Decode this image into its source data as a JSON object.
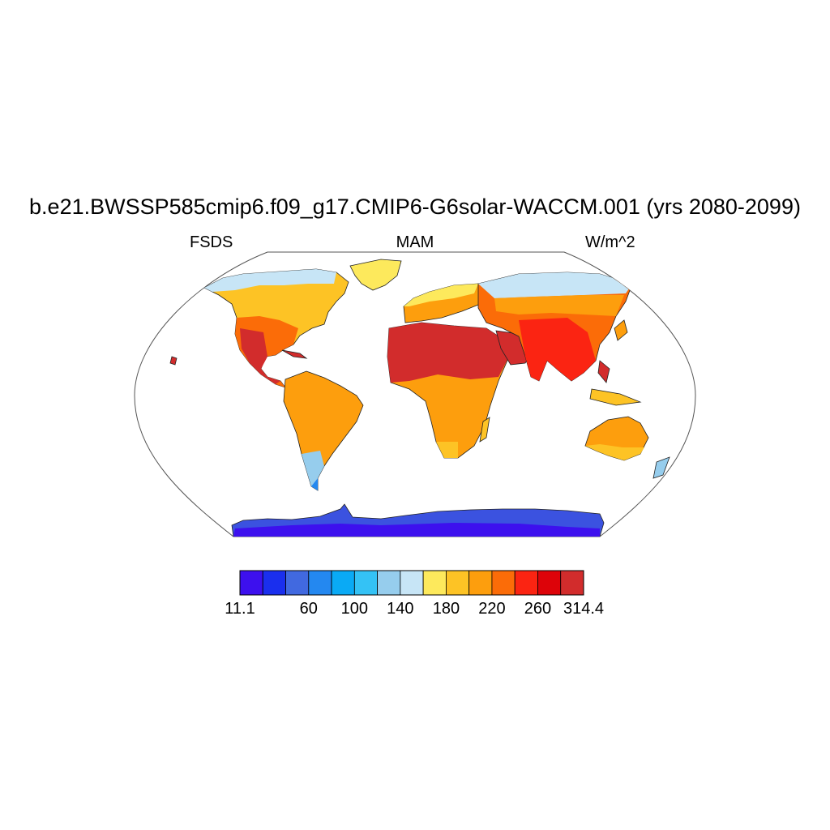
{
  "title": "b.e21.BWSSP585cmip6.f09_g17.CMIP6-G6solar-WACCM.001 (yrs 2080-2099)",
  "left_label": "FSDS",
  "center_label": "MAM",
  "right_label": "W/m^2",
  "colorbar": {
    "colors": [
      "#3d10ee",
      "#1a2fee",
      "#4169e0",
      "#2488f0",
      "#0aaaf5",
      "#34c2f5",
      "#96cded",
      "#c7e5f6",
      "#fde95c",
      "#fdc325",
      "#fd9e0d",
      "#fb6c08",
      "#fb2412",
      "#dd0309",
      "#d22c2c"
    ],
    "labels": [
      "11.1",
      "60",
      "100",
      "140",
      "180",
      "220",
      "260",
      "314.4"
    ],
    "label_positions": [
      0,
      2,
      3,
      4,
      5,
      6,
      7,
      8
    ]
  }
}
